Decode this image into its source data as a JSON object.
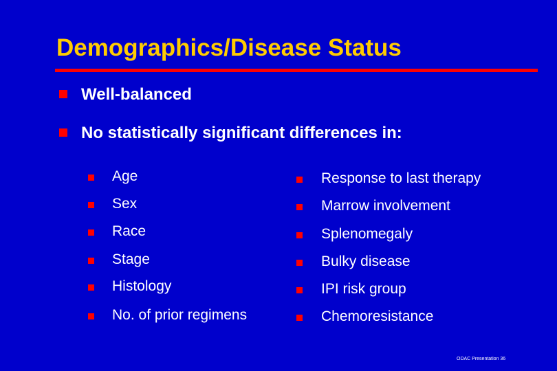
{
  "slide": {
    "title": "Demographics/Disease Status",
    "bullets": [
      "Well-balanced",
      "No statistically significant differences in:"
    ],
    "left_column": [
      "Age",
      "Sex",
      "Race",
      "Stage",
      "Histology",
      "No. of prior regimens"
    ],
    "right_column": [
      "Response to last therapy",
      "Marrow involvement",
      "Splenomegaly",
      "Bulky disease",
      "IPI risk group",
      "Chemoresistance"
    ],
    "footer": "ODAC Presentation 36"
  },
  "colors": {
    "background": "#0000cc",
    "title": "#ffcc00",
    "rule": "#ff0000",
    "bullet": "#ff0000",
    "text": "#ffffff"
  },
  "icons": {
    "bullet": "red-square-bullet-icon"
  }
}
